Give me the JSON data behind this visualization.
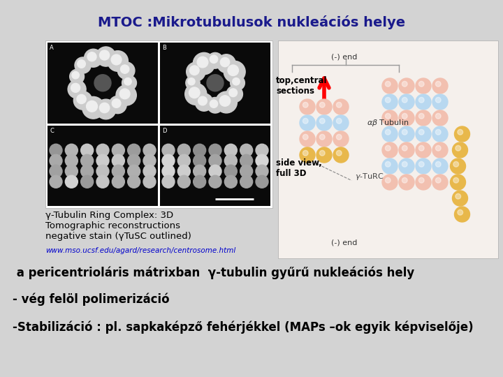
{
  "background_color": "#d3d3d3",
  "title": "MTOC :Mikrotubulusok nukleációs helye",
  "title_color": "#1a1a8c",
  "title_fontsize": 14,
  "caption_text": "γ-Tubulin Ring Complex: 3D\nTomographic reconstructions\nnegative stain (γTuSC outlined)",
  "caption_color": "#000000",
  "caption_fontsize": 9.5,
  "url_text": "www.mso.ucsf.edu/agard/research/centrosome.html",
  "url_color": "#0000cc",
  "url_fontsize": 7.5,
  "line1": " a pericentrioláris mátrixban  γ-tubulin gyűrű nukleációs hely",
  "line2": "- vég felöl polimerizáció",
  "line3": "-Stabilizáció : pl. sapkaképző fehérjékkel (MAPs –ok egyik képviselője)",
  "body_fontsize": 12,
  "body_color": "#000000",
  "label_top_central": "top,central\nsections",
  "label_side_view": "side view,\nfull 3D",
  "label_fontsize": 8.5,
  "pink": "#f2c0b0",
  "blue": "#b8d8f0",
  "gold": "#e8b84b",
  "diagram_bg": "#f5f0ec"
}
